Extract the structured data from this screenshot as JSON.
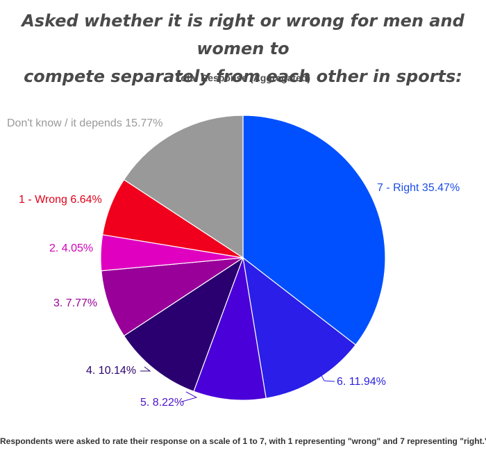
{
  "header": {
    "title_line_1": "Asked whether it is right or wrong for men and women to",
    "title_line_2": "compete separately from each other in sports:",
    "subtitle": "Total Response (Aggregated)"
  },
  "footnote": "Respondents were asked to rate their response on a scale of 1 to 7, with 1 representing \"wrong\" and 7 representing \"right.\"",
  "chart_data": {
    "type": "pie",
    "title": "Asked whether it is right or wrong for men and women to compete separately from each other in sports:",
    "subtitle": "Total Response (Aggregated)",
    "slices": [
      {
        "label": "7 - Right",
        "value": 35.47,
        "display": "7 - Right 35.47%",
        "color": "#0050ff",
        "label_color": "#1a4de8"
      },
      {
        "label": "6.",
        "value": 11.94,
        "display": "6. 11.94%",
        "color": "#2a1ee8",
        "label_color": "#2a1ee0"
      },
      {
        "label": "5.",
        "value": 8.22,
        "display": "5. 8.22%",
        "color": "#4a00d8",
        "label_color": "#4a12c8"
      },
      {
        "label": "4.",
        "value": 10.14,
        "display": "4. 10.14%",
        "color": "#2a0070",
        "label_color": "#2a0070"
      },
      {
        "label": "3.",
        "value": 7.77,
        "display": "3. 7.77%",
        "color": "#990099",
        "label_color": "#990099"
      },
      {
        "label": "2.",
        "value": 4.05,
        "display": "2. 4.05%",
        "color": "#e000c0",
        "label_color": "#d000b8"
      },
      {
        "label": "1 - Wrong",
        "value": 6.64,
        "display": "1 - Wrong 6.64%",
        "color": "#f0001c",
        "label_color": "#e0001a"
      },
      {
        "label": "Don't know / it depends",
        "value": 15.77,
        "display": "Don't know / it depends 15.77%",
        "color": "#999999",
        "label_color": "#999999"
      }
    ],
    "start_angle": "12 o'clock",
    "direction": "clockwise",
    "legend": "none (labels on slices)"
  }
}
